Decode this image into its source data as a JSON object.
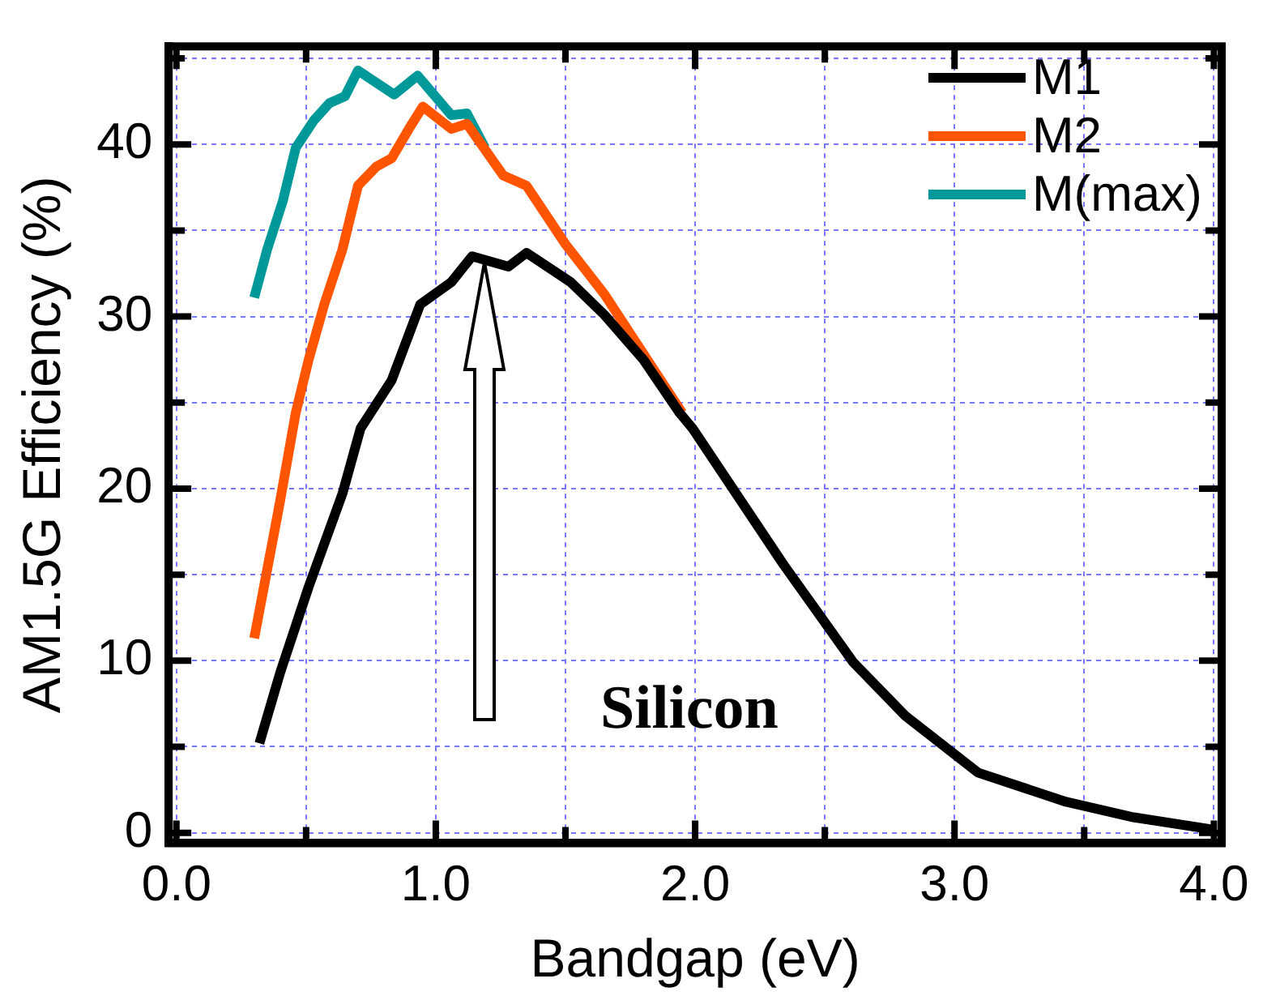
{
  "chart_data": {
    "type": "line",
    "xlabel": "Bandgap (eV)",
    "ylabel": "AM1.5G Efficiency (%)",
    "xlim": [
      -0.03,
      4.03
    ],
    "ylim": [
      -0.6,
      45.7
    ],
    "xticks": [
      {
        "value": 0,
        "label": "0.0"
      },
      {
        "value": 0.5,
        "label": null
      },
      {
        "value": 1,
        "label": "1.0"
      },
      {
        "value": 1.5,
        "label": null
      },
      {
        "value": 2,
        "label": "2.0"
      },
      {
        "value": 2.5,
        "label": null
      },
      {
        "value": 3,
        "label": "3.0"
      },
      {
        "value": 3.5,
        "label": null
      },
      {
        "value": 4,
        "label": "4.0"
      }
    ],
    "yticks": [
      0,
      {
        "value": 5,
        "label": null
      },
      10,
      {
        "value": 15,
        "label": null
      },
      20,
      {
        "value": 25,
        "label": null
      },
      30,
      {
        "value": 35,
        "label": null
      },
      40,
      {
        "value": 45,
        "label": null
      }
    ],
    "grid": true,
    "legend": "top right",
    "marker": "none",
    "line_style": "solid",
    "annotations": [
      "Silicon"
    ],
    "series": [
      {
        "name": "M1",
        "color": "#000000",
        "x": [
          0.32,
          0.4,
          0.51,
          0.64,
          0.71,
          0.83,
          0.94,
          1.06,
          1.14,
          1.28,
          1.35,
          1.52,
          1.65,
          1.8,
          1.94,
          1.99,
          2.34,
          2.61,
          2.81,
          3.09,
          3.43,
          3.69,
          3.99
        ],
        "values": [
          5.2,
          9.3,
          14.3,
          19.7,
          23.5,
          26.3,
          30.7,
          32,
          33.5,
          32.9,
          33.7,
          32,
          30.1,
          27.5,
          24.4,
          23.5,
          15.6,
          9.9,
          6.8,
          3.5,
          1.8,
          0.9,
          0.2
        ]
      },
      {
        "name": "M2",
        "color": "#ff5500",
        "x": [
          0.3,
          0.4,
          0.46,
          0.51,
          0.57,
          0.64,
          0.7,
          0.77,
          0.83,
          0.9,
          0.95,
          1.06,
          1.12,
          1.26,
          1.35,
          1.5,
          1.65,
          1.95
        ],
        "values": [
          11.3,
          19.3,
          24.4,
          27.5,
          30.7,
          33.9,
          37.6,
          38.7,
          39.2,
          41,
          42.2,
          40.9,
          41.2,
          38.2,
          37.6,
          34.2,
          31.3,
          24.4
        ]
      },
      {
        "name": "M(max)",
        "color": "#009999",
        "x": [
          0.3,
          0.35,
          0.41,
          0.46,
          0.53,
          0.59,
          0.65,
          0.7,
          0.84,
          0.93,
          1.06,
          1.12,
          1.19
        ],
        "values": [
          31.1,
          33.9,
          36.7,
          39.8,
          41.4,
          42.4,
          42.8,
          44.3,
          42.9,
          44,
          41.7,
          41.8,
          39.8
        ]
      }
    ]
  }
}
